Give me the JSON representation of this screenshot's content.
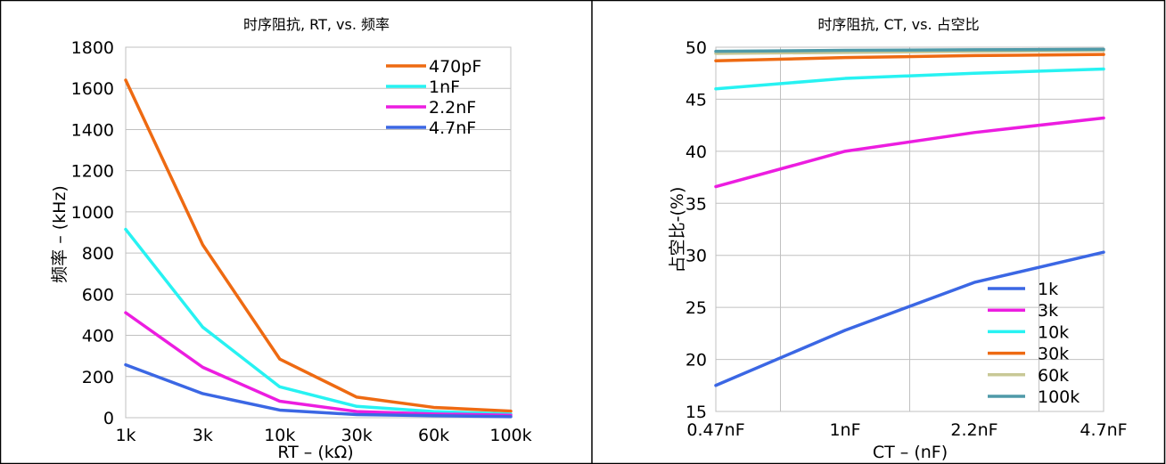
{
  "colors": {
    "c_orange": "#ee6a12",
    "c_cyan": "#27f2f2",
    "c_magenta": "#ec1de0",
    "c_blue": "#3b67e4",
    "c_olive": "#c8c896",
    "c_teal": "#4f9aa8",
    "grid": "#c0c0c0",
    "frame": "#000000"
  },
  "chart_data": [
    {
      "type": "line",
      "title": "时序阻抗, RT, vs. 频率",
      "xlabel": "RT  –  (kΩ)",
      "ylabel": "频率  –  (kHz)",
      "categories": [
        "1k",
        "3k",
        "10k",
        "30k",
        "60k",
        "100k"
      ],
      "ylim": [
        0,
        1800
      ],
      "yticks": [
        "0",
        "200",
        "400",
        "600",
        "800",
        "1000",
        "1200",
        "1400",
        "1600",
        "1800"
      ],
      "legend_position": "top-right",
      "grid": "horizontal",
      "series": [
        {
          "name": "470pF",
          "color": "#ee6a12",
          "values": [
            1640,
            840,
            285,
            100,
            50,
            32
          ]
        },
        {
          "name": "1nF",
          "color": "#27f2f2",
          "values": [
            915,
            440,
            150,
            55,
            30,
            18
          ]
        },
        {
          "name": "2.2nF",
          "color": "#ec1de0",
          "values": [
            510,
            245,
            80,
            30,
            18,
            12
          ]
        },
        {
          "name": "4.7nF",
          "color": "#3b67e4",
          "values": [
            257,
            117,
            37,
            15,
            10,
            5
          ]
        }
      ]
    },
    {
      "type": "line",
      "title": "时序阻抗, CT, vs. 占空比",
      "xlabel": "CT  –  (nF)",
      "ylabel": "占空比-(%)",
      "categories": [
        "0.47nF",
        "1nF",
        "2.2nF",
        "4.7nF"
      ],
      "ylim": [
        15,
        50
      ],
      "yticks": [
        "15",
        "20",
        "25",
        "30",
        "35",
        "40",
        "45",
        "50"
      ],
      "legend_position": "bottom-right",
      "grid": "both",
      "series": [
        {
          "name": "1k",
          "color": "#3b67e4",
          "values": [
            17.5,
            22.8,
            27.4,
            30.3
          ]
        },
        {
          "name": "3k",
          "color": "#ec1de0",
          "values": [
            36.6,
            40.0,
            41.8,
            43.2
          ]
        },
        {
          "name": "10k",
          "color": "#27f2f2",
          "values": [
            46.0,
            47.0,
            47.5,
            47.9
          ]
        },
        {
          "name": "30k",
          "color": "#ee6a12",
          "values": [
            48.7,
            49.0,
            49.2,
            49.3
          ]
        },
        {
          "name": "60k",
          "color": "#c8c896",
          "values": [
            49.4,
            49.5,
            49.6,
            49.7
          ]
        },
        {
          "name": "100k",
          "color": "#4f9aa8",
          "values": [
            49.6,
            49.7,
            49.75,
            49.8
          ]
        }
      ]
    }
  ]
}
